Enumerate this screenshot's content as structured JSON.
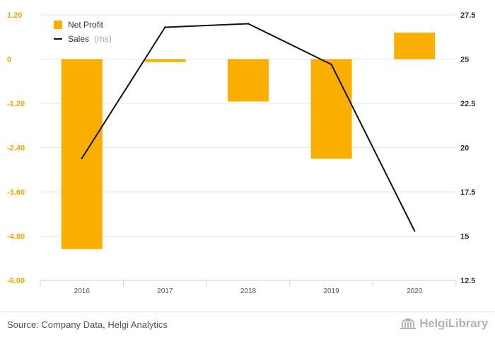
{
  "chart_data": {
    "type": "bar+line",
    "categories": [
      "2016",
      "2017",
      "2018",
      "2019",
      "2020"
    ],
    "series": [
      {
        "name": "Net Profit",
        "type": "bar",
        "axis": "left",
        "color": "#f9ae00",
        "values": [
          -5.15,
          -0.08,
          -1.15,
          -2.7,
          0.72
        ]
      },
      {
        "name": "Sales",
        "legend_suffix": "(rhs)",
        "type": "line",
        "axis": "right",
        "color": "#111111",
        "values": [
          19.4,
          26.8,
          27.0,
          24.7,
          15.3
        ]
      }
    ],
    "y_left": {
      "ticks": [
        "1.20",
        "0",
        "-1.20",
        "-2.40",
        "-3.60",
        "-4.80",
        "-6.00"
      ],
      "range": [
        -6.0,
        1.2
      ]
    },
    "y_right": {
      "ticks": [
        "27.5",
        "25",
        "22.5",
        "20",
        "17.5",
        "15",
        "12.5"
      ],
      "range": [
        12.5,
        27.5
      ]
    },
    "grid": true,
    "legend_position": "top-left"
  },
  "footer": {
    "source": "Source: Company Data, Helgi Analytics",
    "brand": "HelgiLibrary",
    "brand_icon": "library-building-icon"
  }
}
